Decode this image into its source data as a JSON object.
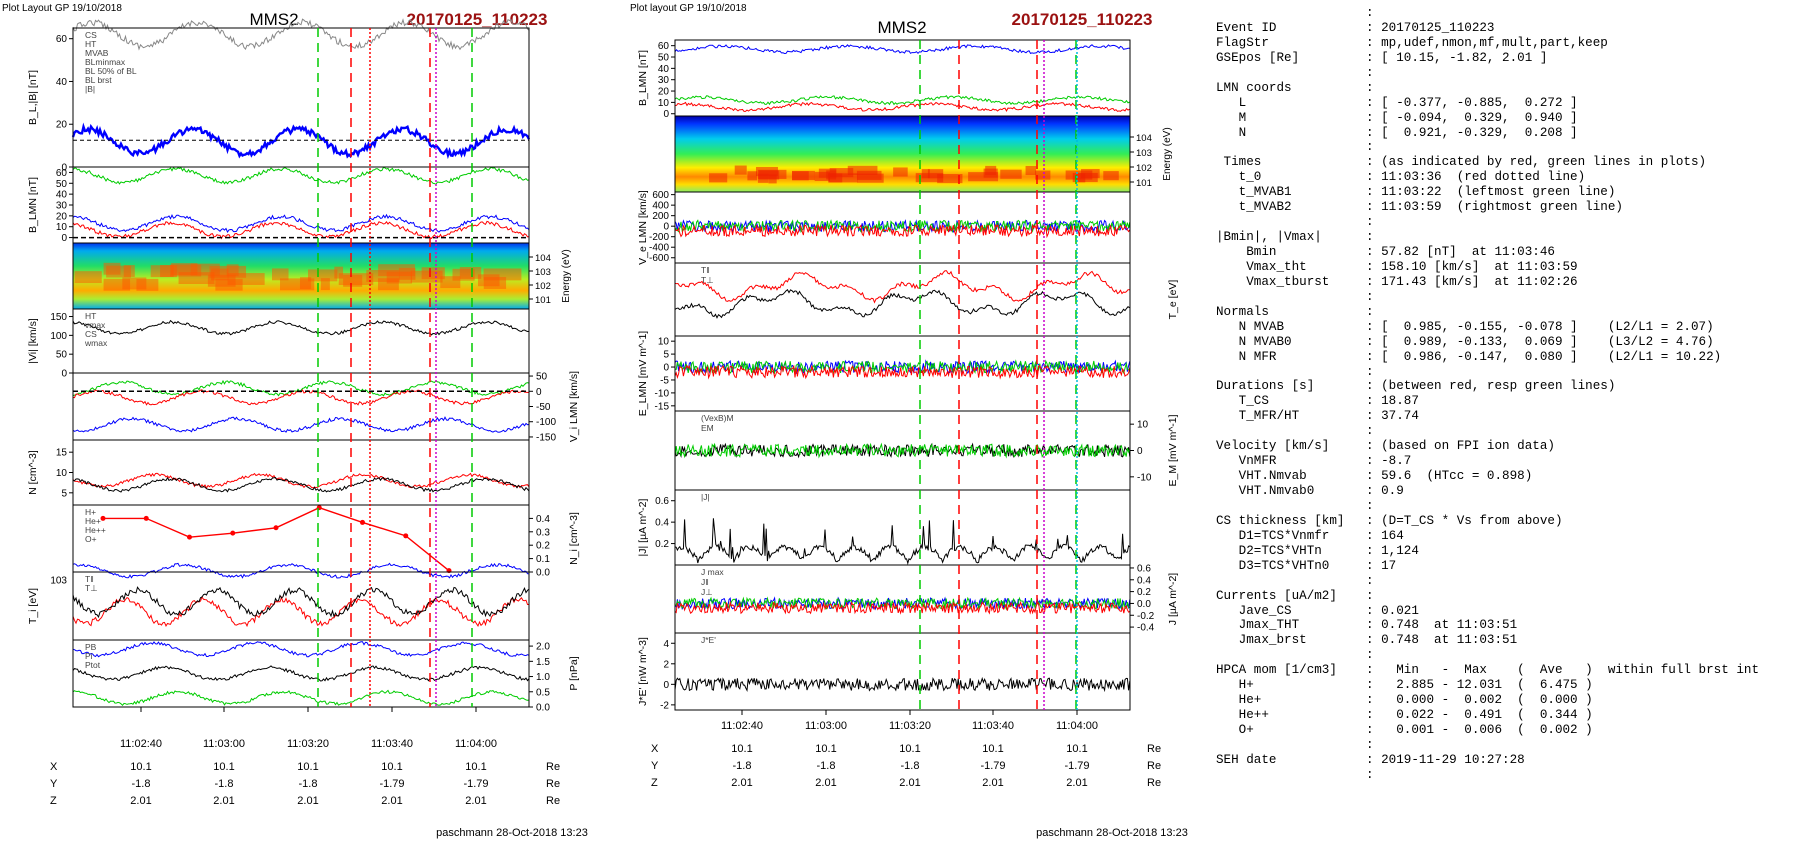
{
  "left_figure": {
    "header": "Plot Layout GP 19/10/2018",
    "spacecraft": "MMS2",
    "event": "20170125_110223",
    "footer": "paschmann 28-Oct-2018 13:23",
    "time_ticks": [
      "11:02:40",
      "11:03:00",
      "11:03:20",
      "11:03:40",
      "11:04:00"
    ],
    "position_table": {
      "rows": [
        {
          "label": "X",
          "values": [
            "10.1",
            "10.1",
            "10.1",
            "10.1",
            "10.1"
          ],
          "unit": "Re"
        },
        {
          "label": "Y",
          "values": [
            "-1.8",
            "-1.8",
            "-1.8",
            "-1.79",
            "-1.79"
          ],
          "unit": "Re"
        },
        {
          "label": "Z",
          "values": [
            "2.01",
            "2.01",
            "2.01",
            "2.01",
            "2.01"
          ],
          "unit": "Re"
        }
      ]
    }
  },
  "right_figure": {
    "header": "Plot layout GP 19/10/2018",
    "spacecraft": "MMS2",
    "event": "20170125_110223",
    "footer": "paschmann 28-Oct-2018 13:23",
    "time_ticks": [
      "11:02:40",
      "11:03:00",
      "11:03:20",
      "11:03:40",
      "11:04:00"
    ],
    "position_table": {
      "rows": [
        {
          "label": "X",
          "values": [
            "10.1",
            "10.1",
            "10.1",
            "10.1",
            "10.1"
          ],
          "unit": "Re"
        },
        {
          "label": "Y",
          "values": [
            "-1.8",
            "-1.8",
            "-1.8",
            "-1.79",
            "-1.79"
          ],
          "unit": "Re"
        },
        {
          "label": "Z",
          "values": [
            "2.01",
            "2.01",
            "2.01",
            "2.01",
            "2.01"
          ],
          "unit": "Re"
        }
      ]
    }
  },
  "colors": {
    "event_title": "#9b1111",
    "red": "#ff0000",
    "green": "#00cc00",
    "blue": "#0000ff",
    "black": "#000000",
    "magenta": "#cc00cc",
    "cyan": "#00bbdd",
    "gray": "#888888"
  },
  "chart_data": [
    {
      "type": "line",
      "figure": "left",
      "ylabel": "B_L,|B| [nT]",
      "ylim": [
        0,
        65
      ],
      "yticks": [
        "0",
        "20",
        "40",
        "60"
      ],
      "legend": [
        "CS",
        "HT",
        "MVAB",
        "BLminmax",
        "BL 50% of BL",
        "BL brst",
        "|B|"
      ],
      "series": [
        {
          "name": "|B|",
          "approx_level": 62,
          "color": "gray"
        },
        {
          "name": "BL brst",
          "approx_level": 12,
          "color": "blue"
        }
      ],
      "annotation_lines": [
        {
          "name": "BL 50% of BL",
          "value": 12.5
        }
      ]
    },
    {
      "type": "line",
      "figure": "left",
      "ylabel": "B_LMN [nT]",
      "ylim": [
        -5,
        65
      ],
      "yticks": [
        "0",
        "10",
        "20",
        "30",
        "40",
        "50",
        "60"
      ],
      "series": [
        {
          "name": "BL",
          "approx_level": 57,
          "color": "green"
        },
        {
          "name": "BM",
          "approx_level": 13,
          "color": "blue"
        },
        {
          "name": "BN",
          "approx_level": 7,
          "color": "red"
        }
      ]
    },
    {
      "type": "heatmap",
      "figure": "left",
      "ylabel": "Energy (eV)",
      "yticks": [
        "10^1",
        "10^2",
        "10^3",
        "10^4"
      ]
    },
    {
      "type": "line",
      "figure": "left",
      "ylabel": "|Vi| [km/s]",
      "ylim": [
        0,
        170
      ],
      "yticks": [
        "0",
        "50",
        "100",
        "150"
      ],
      "legend": [
        "HT",
        "vmax",
        "CS",
        "wmax"
      ],
      "series": [
        {
          "name": "|Vi|",
          "approx_level": 120,
          "color": "black"
        }
      ]
    },
    {
      "type": "line",
      "figure": "left",
      "ylabel": "V_i LMN [km/s]",
      "ylim": [
        -160,
        60
      ],
      "yticks": [
        "50",
        "0",
        "-50",
        "-100",
        "-150"
      ],
      "series": [
        {
          "name": "VL",
          "approx_level": 10,
          "color": "green"
        },
        {
          "name": "VM",
          "approx_level": -20,
          "color": "red"
        },
        {
          "name": "VN",
          "approx_level": -110,
          "color": "blue"
        }
      ]
    },
    {
      "type": "line",
      "figure": "left",
      "ylabel": "N [cm^-3]",
      "ylim": [
        2,
        18
      ],
      "yticks": [
        "5",
        "10",
        "15"
      ],
      "series": [
        {
          "name": "Ne",
          "approx_level": 8,
          "color": "red"
        },
        {
          "name": "Ni",
          "approx_level": 7,
          "color": "black"
        }
      ]
    },
    {
      "type": "line",
      "figure": "left",
      "ylabel": "N_i [cm^-3]",
      "ylim": [
        0,
        0.5
      ],
      "yticks": [
        "0.0",
        "0.1",
        "0.2",
        "0.3",
        "0.4"
      ],
      "legend": [
        "H+",
        "He+",
        "He++",
        "O+"
      ],
      "series": [
        {
          "name": "He++",
          "color": "red",
          "points": [
            0.4,
            0.4,
            0.26,
            0.29,
            0.33,
            0.48,
            0.37,
            0.27,
            0.01
          ]
        },
        {
          "name": "O+",
          "approx_level": 0.01,
          "color": "blue"
        }
      ]
    },
    {
      "type": "line",
      "figure": "left",
      "ylabel": "T_i [eV]",
      "yticks": [
        "10^3"
      ],
      "legend": [
        "T‖",
        "T⊥"
      ],
      "series": [
        {
          "name": "T‖",
          "color": "red"
        },
        {
          "name": "T⊥",
          "color": "black"
        }
      ]
    },
    {
      "type": "line",
      "figure": "left",
      "ylabel": "P [nPa]",
      "ylim": [
        0,
        2.2
      ],
      "yticks": [
        "0.0",
        "0.5",
        "1.0",
        "1.5",
        "2.0"
      ],
      "legend": [
        "PB",
        "Pi",
        "Ptot"
      ],
      "series": [
        {
          "name": "PB",
          "approx_level": 1.9,
          "color": "blue"
        },
        {
          "name": "Pi",
          "approx_level": 1.1,
          "color": "black"
        },
        {
          "name": "Ptot",
          "approx_level": 0.3,
          "color": "green"
        }
      ]
    },
    {
      "type": "line",
      "figure": "right",
      "ylabel": "B_LMN [nT]",
      "ylim": [
        -2,
        65
      ],
      "yticks": [
        "0",
        "10",
        "20",
        "30",
        "40",
        "50",
        "60"
      ],
      "series": [
        {
          "name": "BL",
          "approx_level": 57,
          "color": "blue"
        },
        {
          "name": "BM",
          "approx_level": 12,
          "color": "green"
        },
        {
          "name": "BN",
          "approx_level": 6,
          "color": "red"
        }
      ]
    },
    {
      "type": "heatmap",
      "figure": "right",
      "ylabel": "Energy (eV)",
      "yticks": [
        "10^1",
        "10^2",
        "10^3",
        "10^4"
      ]
    },
    {
      "type": "line",
      "figure": "right",
      "ylabel": "V_e LMN [km/s]",
      "ylim": [
        -700,
        650
      ],
      "yticks": [
        "600",
        "400",
        "200",
        "0",
        "-200",
        "-400",
        "-600"
      ],
      "series": [
        {
          "name": "VL",
          "color": "blue"
        },
        {
          "name": "VM",
          "color": "green"
        },
        {
          "name": "VN",
          "color": "red"
        }
      ]
    },
    {
      "type": "line",
      "figure": "right",
      "ylabel": "T_e [eV]",
      "legend": [
        "T‖",
        "T⊥"
      ],
      "series": [
        {
          "name": "T‖",
          "color": "red"
        },
        {
          "name": "T⊥",
          "color": "black"
        }
      ]
    },
    {
      "type": "line",
      "figure": "right",
      "ylabel": "E_LMN [mV m^-1]",
      "ylim": [
        -17,
        12
      ],
      "yticks": [
        "10",
        "5",
        "0",
        "-5",
        "-10",
        "-15"
      ],
      "series": [
        {
          "name": "EL",
          "color": "blue"
        },
        {
          "name": "EM",
          "color": "green"
        },
        {
          "name": "EN",
          "color": "red"
        }
      ]
    },
    {
      "type": "line",
      "figure": "right",
      "ylabel": "E_M [mV m^-1]",
      "ylim": [
        -15,
        15
      ],
      "yticks": [
        "10",
        "0",
        "-10"
      ],
      "legend": [
        "(VexB)M",
        "EM"
      ],
      "series": [
        {
          "name": "(VexB)M",
          "color": "black"
        },
        {
          "name": "EM",
          "color": "green"
        }
      ]
    },
    {
      "type": "line",
      "figure": "right",
      "ylabel": "|J| [µA m^-2]",
      "ylim": [
        0,
        0.7
      ],
      "yticks": [
        "0.2",
        "0.4",
        "0.6"
      ],
      "legend": [
        "|J|"
      ],
      "series": [
        {
          "name": "|J|",
          "color": "black"
        }
      ]
    },
    {
      "type": "line",
      "figure": "right",
      "ylabel": "J [µA m^-2]",
      "ylim": [
        -0.5,
        0.65
      ],
      "yticks": [
        "0.6",
        "0.4",
        "0.2",
        "0.0",
        "-0.2",
        "-0.4"
      ],
      "legend": [
        "J max",
        "J‖",
        "J⊥"
      ],
      "series": [
        {
          "name": "J‖",
          "color": "blue"
        },
        {
          "name": "J⊥",
          "color": "green"
        },
        {
          "name": "Jred",
          "color": "red"
        }
      ]
    },
    {
      "type": "line",
      "figure": "right",
      "ylabel": "J*E' [nW m^-3]",
      "ylim": [
        -2.5,
        5
      ],
      "yticks": [
        "4",
        "2",
        "0",
        "-2"
      ],
      "legend": [
        "J*E'"
      ],
      "series": [
        {
          "name": "J*E'",
          "color": "black"
        }
      ]
    }
  ],
  "summary": [
    {
      "key": "",
      "value": ""
    },
    {
      "key": "Event ID",
      "value": "20170125_110223"
    },
    {
      "key": "FlagStr",
      "value": "mp,udef,nmon,mf,mult,part,keep"
    },
    {
      "key": "GSEpos [Re]",
      "value": "[ 10.15, -1.82, 2.01 ]"
    },
    {
      "key": "",
      "value": ""
    },
    {
      "key": "LMN coords",
      "value": ""
    },
    {
      "key": "   L",
      "value": "[ -0.377, -0.885,  0.272 ]"
    },
    {
      "key": "   M",
      "value": "[ -0.094,  0.329,  0.940 ]"
    },
    {
      "key": "   N",
      "value": "[  0.921, -0.329,  0.208 ]"
    },
    {
      "key": "",
      "value": ""
    },
    {
      "key": " Times",
      "value": "(as indicated by red, green lines in plots)"
    },
    {
      "key": "   t_0",
      "value": "11:03:36  (red dotted line)"
    },
    {
      "key": "   t_MVAB1",
      "value": "11:03:22  (leftmost green line)"
    },
    {
      "key": "   t_MVAB2",
      "value": "11:03:59  (rightmost green line)"
    },
    {
      "key": "",
      "value": ""
    },
    {
      "key": "|Bmin|, |Vmax|",
      "value": ""
    },
    {
      "key": "    Bmin",
      "value": "57.82 [nT]  at 11:03:46"
    },
    {
      "key": "    Vmax_tht",
      "value": "158.10 [km/s]  at 11:03:59"
    },
    {
      "key": "    Vmax_tburst",
      "value": "171.43 [km/s]  at 11:02:26"
    },
    {
      "key": "",
      "value": ""
    },
    {
      "key": "Normals",
      "value": ""
    },
    {
      "key": "   N MVAB",
      "value": "[  0.985, -0.155, -0.078 ]    (L2/L1 = 2.07)"
    },
    {
      "key": "   N MVAB0",
      "value": "[  0.989, -0.133,  0.069 ]    (L3/L2 = 4.76)"
    },
    {
      "key": "   N MFR",
      "value": "[  0.986, -0.147,  0.080 ]    (L2/L1 = 10.22)"
    },
    {
      "key": "",
      "value": ""
    },
    {
      "key": "Durations [s]",
      "value": "(between red, resp green lines)"
    },
    {
      "key": "   T_CS",
      "value": "18.87"
    },
    {
      "key": "   T_MFR/HT",
      "value": "37.74"
    },
    {
      "key": "",
      "value": ""
    },
    {
      "key": "Velocity [km/s]",
      "value": "(based on FPI ion data)"
    },
    {
      "key": "   VnMFR",
      "value": "-8.7"
    },
    {
      "key": "   VHT.Nmvab",
      "value": "59.6  (HTcc = 0.898)"
    },
    {
      "key": "   VHT.Nmvab0",
      "value": "0.9"
    },
    {
      "key": "",
      "value": ""
    },
    {
      "key": "CS thickness [km]",
      "value": "(D=T_CS * Vs from above)"
    },
    {
      "key": "   D1=TCS*Vnmfr",
      "value": "164"
    },
    {
      "key": "   D2=TCS*VHTn",
      "value": "1,124"
    },
    {
      "key": "   D3=TCS*VHTn0",
      "value": "17"
    },
    {
      "key": "",
      "value": ""
    },
    {
      "key": "Currents [uA/m2]",
      "value": ""
    },
    {
      "key": "   Jave_CS",
      "value": "0.021"
    },
    {
      "key": "   Jmax_THT",
      "value": "0.748  at 11:03:51"
    },
    {
      "key": "   Jmax_brst",
      "value": "0.748  at 11:03:51"
    },
    {
      "key": "",
      "value": ""
    },
    {
      "key": "HPCA mom [1/cm3]",
      "value": "  Min   -  Max    (  Ave   )  within full brst int"
    },
    {
      "key": "   H+",
      "value": "  2.885 - 12.031  (  6.475 )"
    },
    {
      "key": "   He+",
      "value": "  0.000 -  0.002  (  0.000 )"
    },
    {
      "key": "   He++",
      "value": "  0.022 -  0.491  (  0.344 )"
    },
    {
      "key": "   O+",
      "value": "  0.001 -  0.006  (  0.002 )"
    },
    {
      "key": "",
      "value": ""
    },
    {
      "key": "SEH date",
      "value": "2019-11-29 10:27:28"
    },
    {
      "key": "",
      "value": ""
    }
  ]
}
